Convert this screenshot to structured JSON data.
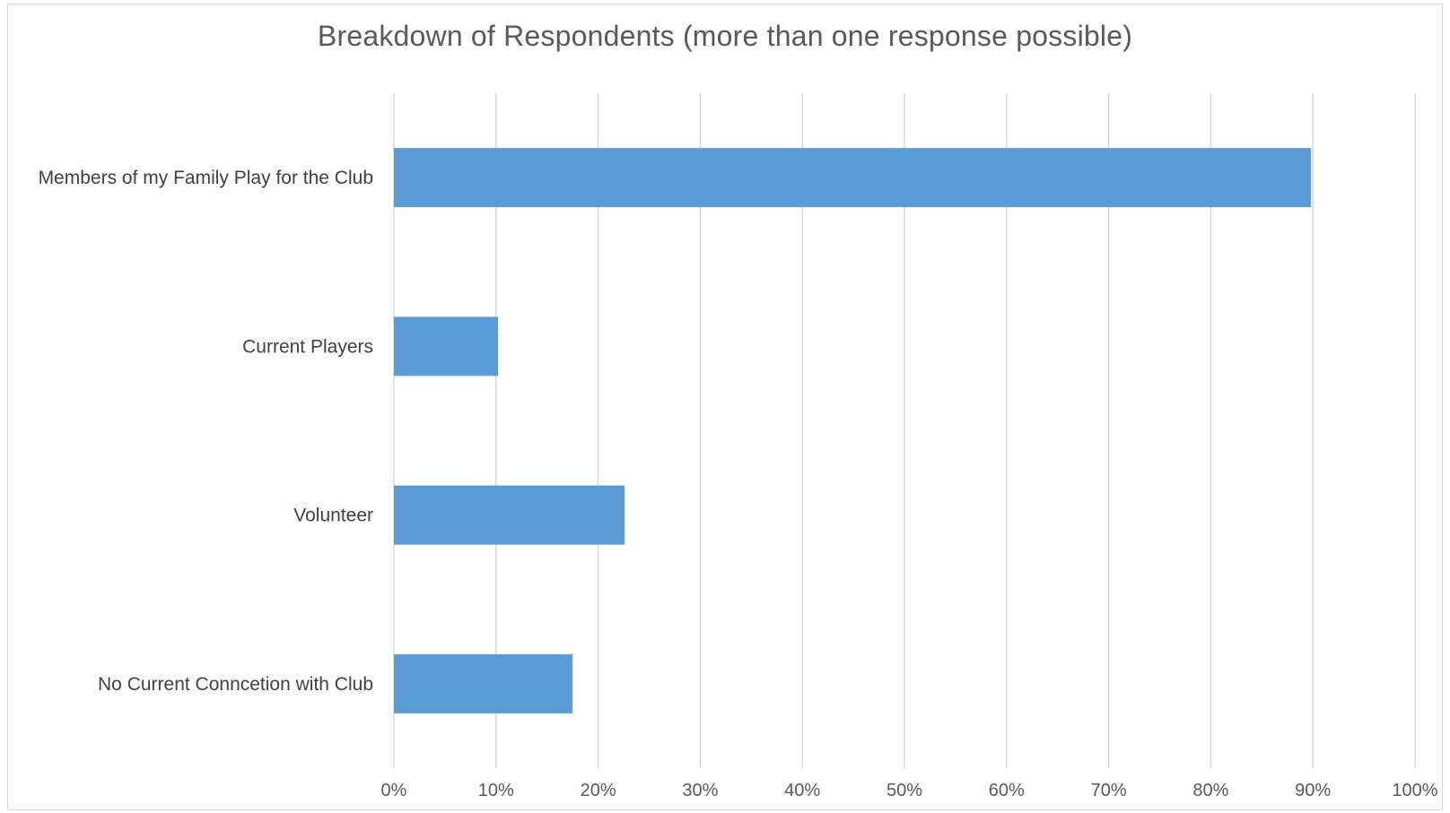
{
  "chart_data": {
    "type": "bar",
    "orientation": "horizontal",
    "title": "Breakdown of Respondents (more than one response possible)",
    "xlabel": "",
    "ylabel": "",
    "categories": [
      "Members of my Family Play for the Club",
      "Current Players",
      "Volunteer",
      "No Current Conncetion with Club"
    ],
    "values": [
      89.8,
      10.2,
      22.6,
      17.5
    ],
    "xlim": [
      0,
      100
    ],
    "xticks": [
      0,
      10,
      20,
      30,
      40,
      50,
      60,
      70,
      80,
      90,
      100
    ],
    "xtick_labels": [
      "0%",
      "10%",
      "20%",
      "30%",
      "40%",
      "50%",
      "60%",
      "70%",
      "80%",
      "90%",
      "100%"
    ],
    "grid": "vertical",
    "legend": "none",
    "colors": {
      "bar": "#5b9bd5",
      "grid": "#d9d9d9",
      "text": "#595959"
    }
  }
}
